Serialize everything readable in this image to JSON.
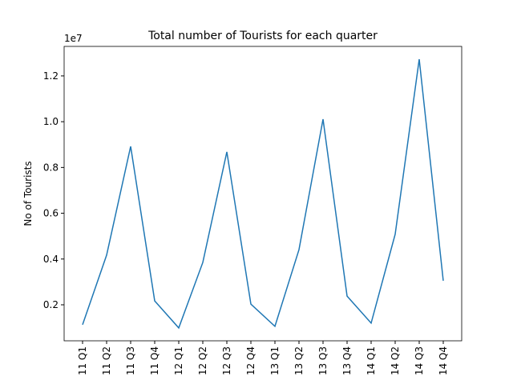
{
  "chart_data": {
    "type": "line",
    "title": "Total number of Tourists for each quarter",
    "y_label": "No of Tourists",
    "y_offset_label": "1e7",
    "categories": [
      "11 Q1",
      "11 Q2",
      "11 Q3",
      "11 Q4",
      "12 Q1",
      "12 Q2",
      "12 Q3",
      "12 Q4",
      "13 Q1",
      "13 Q2",
      "13 Q3",
      "13 Q4",
      "14 Q1",
      "14 Q2",
      "14 Q3",
      "14 Q4"
    ],
    "series": [
      {
        "color": "#1f77b4",
        "values": [
          1130000,
          4170000,
          8920000,
          2170000,
          990000,
          3850000,
          8680000,
          2030000,
          1060000,
          4410000,
          10110000,
          2380000,
          1200000,
          5080000,
          12730000,
          3050000
        ]
      }
    ],
    "ylim": [
      427000,
      13290000
    ],
    "yticks": [
      {
        "value": 2000000,
        "label": "0.2"
      },
      {
        "value": 4000000,
        "label": "0.4"
      },
      {
        "value": 6000000,
        "label": "0.6"
      },
      {
        "value": 8000000,
        "label": "0.8"
      },
      {
        "value": 10000000,
        "label": "1.0"
      },
      {
        "value": 12000000,
        "label": "1.2"
      }
    ],
    "grid": false
  }
}
